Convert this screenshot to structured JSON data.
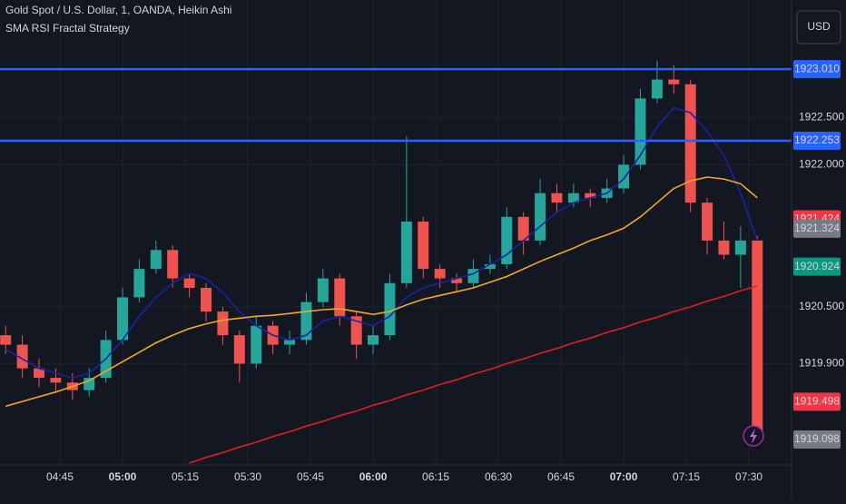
{
  "chart_data": {
    "type": "candlestick",
    "title": "Gold Spot / U.S. Dollar, 1, OANDA, Heikin Ashi",
    "subtitle": "SMA RSI Fractal Strategy",
    "currency": "USD",
    "up_color": "#26a69a",
    "down_color": "#ef5350",
    "grid": true,
    "xlim": [
      270.65,
      460.2
    ],
    "ylim": [
      1918.83,
      1923.74
    ],
    "xticks": [
      {
        "value": 285,
        "label": "04:45"
      },
      {
        "value": 300,
        "label": "05:00",
        "bold": true
      },
      {
        "value": 315,
        "label": "05:15"
      },
      {
        "value": 330,
        "label": "05:30"
      },
      {
        "value": 345,
        "label": "05:45"
      },
      {
        "value": 360,
        "label": "06:00",
        "bold": true
      },
      {
        "value": 375,
        "label": "06:15"
      },
      {
        "value": 390,
        "label": "06:30"
      },
      {
        "value": 405,
        "label": "06:45"
      },
      {
        "value": 420,
        "label": "07:00",
        "bold": true
      },
      {
        "value": 435,
        "label": "07:15"
      },
      {
        "value": 450,
        "label": "07:30"
      }
    ],
    "yticks": [
      {
        "value": 1922.5,
        "label": "1922.500"
      },
      {
        "value": 1922,
        "label": "1922.000"
      },
      {
        "value": 1920.5,
        "label": "1920.500"
      },
      {
        "value": 1919.9,
        "label": "1919.900"
      }
    ],
    "x": [
      272,
      276,
      280,
      284,
      288,
      292,
      296,
      300,
      304,
      308,
      312,
      316,
      320,
      324,
      328,
      332,
      336,
      340,
      344,
      348,
      352,
      356,
      360,
      364,
      368,
      372,
      376,
      380,
      384,
      388,
      392,
      396,
      400,
      404,
      408,
      412,
      416,
      420,
      424,
      428,
      432,
      436,
      440,
      444,
      448,
      452
    ],
    "open": [
      1920.2,
      1920.1,
      1919.85,
      1919.75,
      1919.7,
      1919.62,
      1919.75,
      1920.15,
      1920.6,
      1920.9,
      1921.1,
      1920.8,
      1920.7,
      1920.45,
      1920.2,
      1919.9,
      1920.3,
      1920.1,
      1920.15,
      1920.55,
      1920.8,
      1920.4,
      1920.1,
      1920.2,
      1920.75,
      1921.4,
      1920.9,
      1920.8,
      1920.75,
      1920.9,
      1920.95,
      1921.45,
      1921.2,
      1921.7,
      1921.6,
      1921.7,
      1921.65,
      1921.75,
      1922.0,
      1922.7,
      1922.9,
      1922.85,
      1921.6,
      1921.2,
      1921.05,
      1921.2
    ],
    "high": [
      1920.3,
      1920.2,
      1919.95,
      1919.85,
      1919.8,
      1919.85,
      1920.25,
      1920.7,
      1921.0,
      1921.2,
      1921.15,
      1920.85,
      1920.75,
      1920.5,
      1920.25,
      1920.4,
      1920.35,
      1920.25,
      1920.65,
      1920.9,
      1920.85,
      1920.45,
      1920.3,
      1920.85,
      1922.3,
      1921.45,
      1920.95,
      1920.85,
      1921.0,
      1921.05,
      1921.55,
      1921.5,
      1921.85,
      1921.8,
      1921.8,
      1921.75,
      1921.85,
      1922.1,
      1922.8,
      1923.1,
      1923.05,
      1922.9,
      1921.65,
      1921.4,
      1921.35,
      1921.25
    ],
    "low": [
      1920.0,
      1919.75,
      1919.65,
      1919.6,
      1919.52,
      1919.55,
      1919.7,
      1920.1,
      1920.55,
      1920.85,
      1920.7,
      1920.6,
      1920.35,
      1920.1,
      1919.7,
      1919.85,
      1920.0,
      1920.0,
      1920.1,
      1920.5,
      1920.3,
      1919.95,
      1920.0,
      1920.15,
      1920.7,
      1920.8,
      1920.7,
      1920.65,
      1920.7,
      1920.85,
      1920.9,
      1921.05,
      1921.15,
      1921.5,
      1921.55,
      1921.55,
      1921.6,
      1921.7,
      1921.95,
      1922.65,
      1922.75,
      1921.5,
      1921.05,
      1921.0,
      1920.7,
      1919.05
    ],
    "close": [
      1920.1,
      1919.85,
      1919.75,
      1919.7,
      1919.62,
      1919.75,
      1920.15,
      1920.6,
      1920.9,
      1921.1,
      1920.8,
      1920.7,
      1920.45,
      1920.2,
      1919.9,
      1920.3,
      1920.1,
      1920.15,
      1920.55,
      1920.8,
      1920.4,
      1920.1,
      1920.2,
      1920.75,
      1921.4,
      1920.9,
      1920.8,
      1920.75,
      1920.9,
      1920.95,
      1921.45,
      1921.2,
      1921.7,
      1921.6,
      1921.7,
      1921.65,
      1921.75,
      1922.0,
      1922.7,
      1922.9,
      1922.85,
      1921.6,
      1921.2,
      1921.05,
      1921.2,
      1919.15
    ],
    "series": [
      {
        "color": "#1a22a8",
        "values": [
          1920.05,
          1919.95,
          1919.85,
          1919.8,
          1919.75,
          1919.8,
          1919.95,
          1920.15,
          1920.4,
          1920.6,
          1920.75,
          1920.85,
          1920.8,
          1920.65,
          1920.45,
          1920.3,
          1920.2,
          1920.15,
          1920.2,
          1920.35,
          1920.4,
          1920.35,
          1920.3,
          1920.4,
          1920.6,
          1920.7,
          1920.75,
          1920.8,
          1920.85,
          1920.95,
          1921.05,
          1921.2,
          1921.35,
          1921.5,
          1921.6,
          1921.65,
          1921.7,
          1921.85,
          1922.1,
          1922.4,
          1922.6,
          1922.55,
          1922.35,
          1922.1,
          1921.7,
          1921.2
        ]
      },
      {
        "color": "#f5a623",
        "values": [
          1919.45,
          1919.5,
          1919.55,
          1919.6,
          1919.66,
          1919.72,
          1919.82,
          1919.92,
          1920.02,
          1920.12,
          1920.2,
          1920.27,
          1920.32,
          1920.36,
          1920.38,
          1920.4,
          1920.41,
          1920.43,
          1920.45,
          1920.47,
          1920.48,
          1920.45,
          1920.42,
          1920.45,
          1920.52,
          1920.58,
          1920.62,
          1920.66,
          1920.7,
          1920.76,
          1920.82,
          1920.9,
          1920.98,
          1921.05,
          1921.12,
          1921.2,
          1921.26,
          1921.33,
          1921.45,
          1921.6,
          1921.75,
          1921.83,
          1921.87,
          1921.85,
          1921.8,
          1921.65
        ]
      },
      {
        "color": "#e01e1e",
        "values": [
          null,
          null,
          null,
          null,
          null,
          null,
          null,
          null,
          null,
          null,
          null,
          1918.85,
          1918.91,
          1918.96,
          1919.02,
          1919.07,
          1919.13,
          1919.18,
          1919.24,
          1919.29,
          1919.35,
          1919.4,
          1919.46,
          1919.51,
          1919.57,
          1919.62,
          1919.68,
          1919.73,
          1919.79,
          1919.84,
          1919.9,
          1919.95,
          1920.01,
          1920.06,
          1920.12,
          1920.17,
          1920.23,
          1920.28,
          1920.34,
          1920.39,
          1920.45,
          1920.5,
          1920.56,
          1920.61,
          1920.67,
          1920.72
        ]
      }
    ],
    "hlines": [
      {
        "value": 1923.01,
        "color": "#2962ff"
      },
      {
        "value": 1922.253,
        "color": "#2962ff"
      }
    ],
    "price_labels": [
      {
        "value": 1923.01,
        "label": "1923.010",
        "color": "#2962ff"
      },
      {
        "value": 1922.253,
        "label": "1922.253",
        "color": "#2962ff"
      },
      {
        "value": 1921.424,
        "label": "1921.424",
        "color": "#f23645"
      },
      {
        "value": 1921.324,
        "label": "1921.324",
        "color": "#787b86"
      },
      {
        "value": 1920.924,
        "label": "1920.924",
        "color": "#089981"
      },
      {
        "value": 1919.498,
        "label": "1919.498",
        "color": "#f23645"
      },
      {
        "value": 1919.098,
        "label": "1919.098",
        "color": "#787b86"
      }
    ]
  }
}
